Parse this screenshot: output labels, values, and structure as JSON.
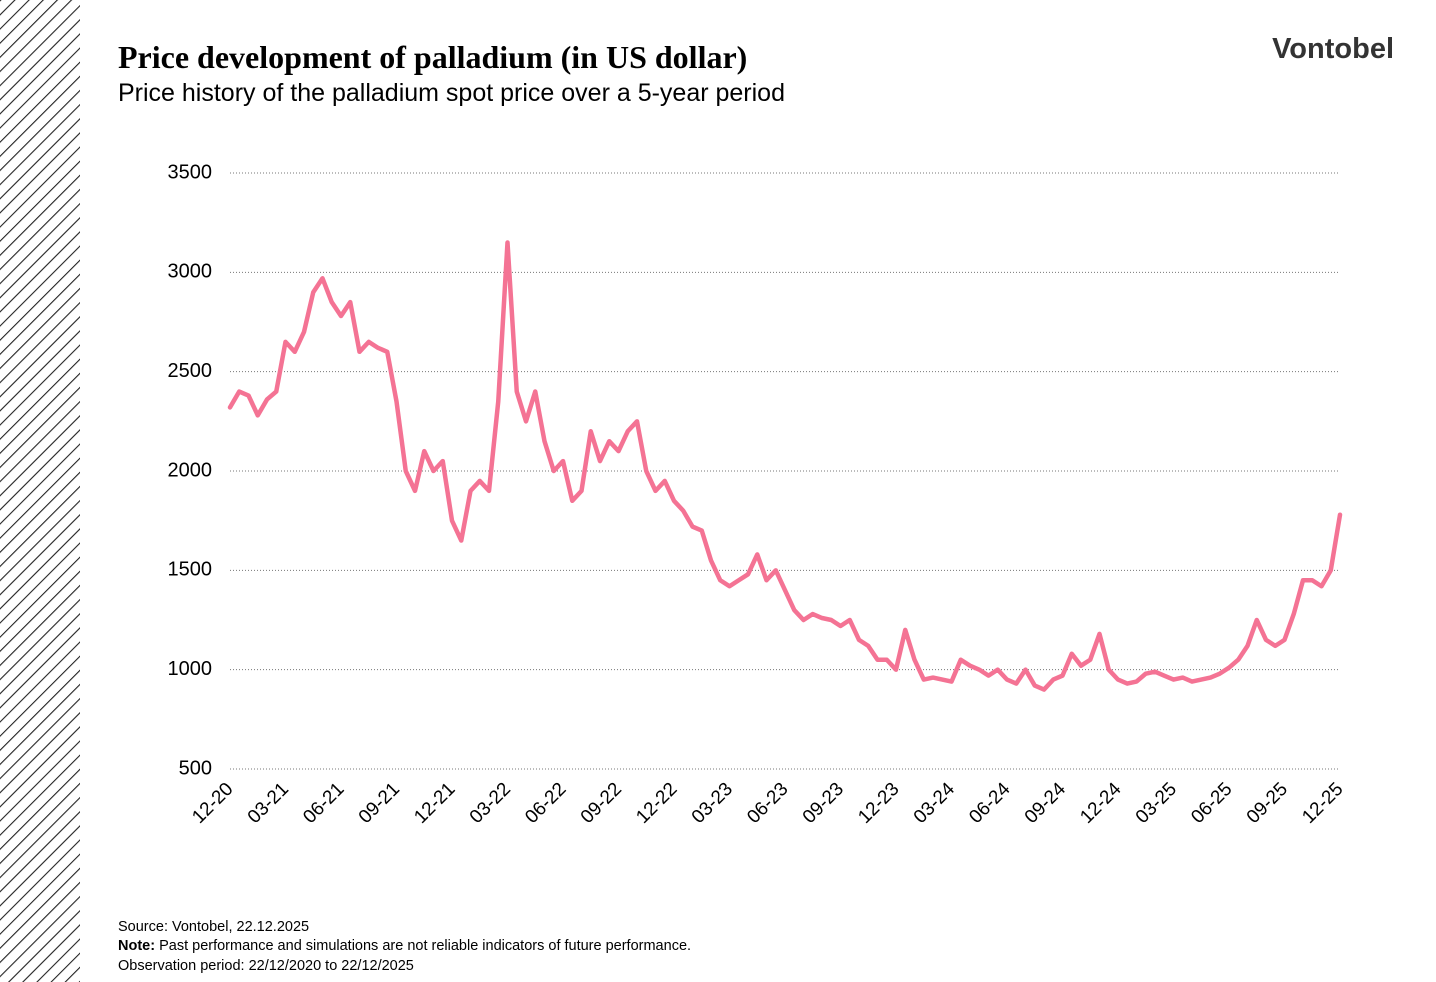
{
  "chart_data": {
    "type": "line",
    "title": "Price development of palladium (in US dollar)",
    "subtitle": "Price history of the palladium spot price over a 5-year period",
    "categories": [
      "12-20",
      null,
      null,
      null,
      null,
      null,
      "03-21",
      null,
      null,
      null,
      null,
      null,
      "06-21",
      null,
      null,
      null,
      null,
      null,
      "09-21",
      null,
      null,
      null,
      null,
      null,
      "12-21",
      null,
      null,
      null,
      null,
      null,
      "03-22",
      null,
      null,
      null,
      null,
      null,
      "06-22",
      null,
      null,
      null,
      null,
      null,
      "09-22",
      null,
      null,
      null,
      null,
      null,
      "12-22",
      null,
      null,
      null,
      null,
      null,
      "03-23",
      null,
      null,
      null,
      null,
      null,
      "06-23",
      null,
      null,
      null,
      null,
      null,
      "09-23",
      null,
      null,
      null,
      null,
      null,
      "12-23",
      null,
      null,
      null,
      null,
      null,
      "03-24",
      null,
      null,
      null,
      null,
      null,
      "06-24",
      null,
      null,
      null,
      null,
      null,
      "09-24",
      null,
      null,
      null,
      null,
      null,
      "12-24",
      null,
      null,
      null,
      null,
      null,
      "03-25",
      null,
      null,
      null,
      null,
      null,
      "06-25",
      null,
      null,
      null,
      null,
      null,
      "09-25",
      null,
      null,
      null,
      null,
      null,
      "12-25"
    ],
    "values": [
      2320,
      2400,
      2380,
      2280,
      2360,
      2400,
      2650,
      2600,
      2700,
      2900,
      2970,
      2850,
      2780,
      2850,
      2600,
      2650,
      2620,
      2600,
      2350,
      2000,
      1900,
      2100,
      2000,
      2050,
      1750,
      1650,
      1900,
      1950,
      1900,
      2350,
      3150,
      2400,
      2250,
      2400,
      2150,
      2000,
      2050,
      1850,
      1900,
      2200,
      2050,
      2150,
      2100,
      2200,
      2250,
      2000,
      1900,
      1950,
      1850,
      1800,
      1720,
      1700,
      1550,
      1450,
      1420,
      1450,
      1480,
      1580,
      1450,
      1500,
      1400,
      1300,
      1250,
      1280,
      1260,
      1250,
      1220,
      1250,
      1150,
      1120,
      1050,
      1050,
      1000,
      1200,
      1050,
      950,
      960,
      950,
      940,
      1050,
      1020,
      1000,
      970,
      1000,
      950,
      930,
      1000,
      920,
      900,
      950,
      970,
      1080,
      1020,
      1050,
      1180,
      1000,
      950,
      930,
      940,
      980,
      990,
      970,
      950,
      960,
      940,
      950,
      960,
      980,
      1010,
      1050,
      1120,
      1250,
      1150,
      1120,
      1150,
      1280,
      1450,
      1450,
      1420,
      1500,
      1780
    ],
    "color": "#f47394",
    "ylim": [
      500,
      3500
    ],
    "yticks": [
      500,
      1000,
      1500,
      2000,
      2500,
      3000,
      3500
    ],
    "grid": true
  },
  "logo": "Vontobel",
  "footer": {
    "source": "Source: Vontobel, 22.12.2025",
    "note_label": "Note:",
    "note_text": " Past performance and simulations are not reliable indicators of future performance.",
    "period": "Observation period: 22/12/2020 to 22/12/2025"
  }
}
